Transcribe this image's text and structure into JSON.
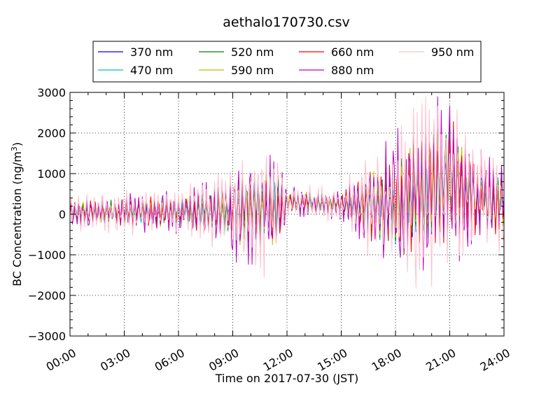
{
  "chart_data": {
    "type": "line",
    "title": "aethalo170730.csv",
    "xlabel": "Time on 2017-07-30 (JST)",
    "ylabel": "BC Concentration (ng/m",
    "ylabel_sup": "3",
    "ylabel_close": ")",
    "xlim": [
      "00:00",
      "24:00"
    ],
    "ylim": [
      -3000,
      3000
    ],
    "x_ticks": [
      "00:00",
      "03:00",
      "06:00",
      "09:00",
      "12:00",
      "15:00",
      "18:00",
      "21:00",
      "24:00"
    ],
    "y_ticks": [
      "3000",
      "2000",
      "1000",
      "0",
      "−1000",
      "−2000",
      "−3000"
    ],
    "grid": true,
    "legend_position": "top",
    "series": [
      {
        "name": "370 nm",
        "color": "#0000ff"
      },
      {
        "name": "470 nm",
        "color": "#00bfbf"
      },
      {
        "name": "520 nm",
        "color": "#008000"
      },
      {
        "name": "590 nm",
        "color": "#bfbf00"
      },
      {
        "name": "660 nm",
        "color": "#ff0000"
      },
      {
        "name": "880 nm",
        "color": "#bf00bf"
      },
      {
        "name": "950 nm",
        "color": "#ffc0cb"
      }
    ],
    "amplitude_envelope_hours": [
      0,
      3,
      6,
      8.5,
      9,
      11.5,
      12,
      15,
      16.5,
      18,
      19.5,
      21,
      22.5,
      24
    ],
    "amplitude_envelope_values": [
      350,
      450,
      500,
      800,
      1300,
      1300,
      350,
      350,
      1100,
      1700,
      2200,
      1900,
      1200,
      1000
    ],
    "baseline_envelope_values": [
      50,
      50,
      50,
      100,
      150,
      150,
      300,
      250,
      200,
      200,
      600,
      900,
      400,
      300
    ]
  }
}
